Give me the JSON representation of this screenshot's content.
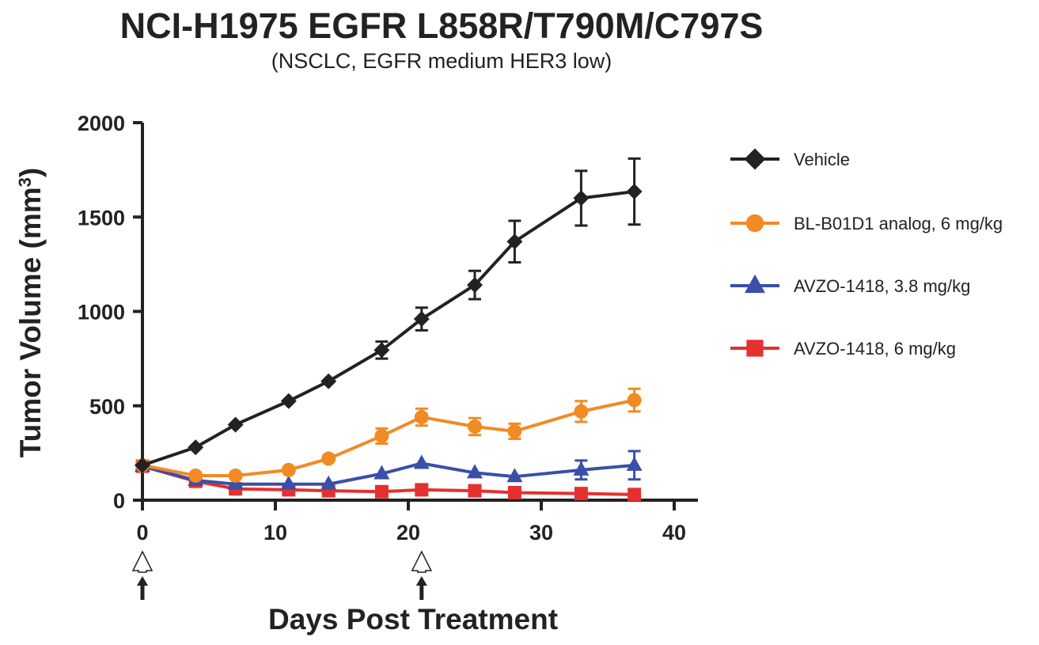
{
  "chart_data": {
    "type": "line",
    "title": "NCI-H1975 EGFR L858R/T790M/C797S",
    "subtitle": "(NSCLC, EGFR medium HER3 low)",
    "xlabel": "Days Post Treatment",
    "ylabel_main": "Tumor Volume (mm",
    "ylabel_sup": "3",
    "ylabel_close": ")",
    "xlim": [
      0,
      40
    ],
    "ylim": [
      0,
      2000
    ],
    "x_ticks": [
      0,
      10,
      20,
      30,
      40
    ],
    "y_ticks": [
      0,
      500,
      1000,
      1500,
      2000
    ],
    "grid": false,
    "legend_position": "right",
    "dosing_arrows_days": [
      0,
      21
    ],
    "series": [
      {
        "name": "Vehicle",
        "color": "#222222",
        "marker": "diamond",
        "x": [
          0,
          4,
          7,
          11,
          14,
          18,
          21,
          25,
          28,
          33,
          37
        ],
        "y": [
          185,
          280,
          400,
          525,
          630,
          795,
          960,
          1140,
          1370,
          1600,
          1635
        ],
        "err": [
          0,
          0,
          0,
          0,
          0,
          45,
          60,
          75,
          110,
          145,
          175
        ]
      },
      {
        "name": "BL-B01D1 analog, 6 mg/kg",
        "color": "#f28a24",
        "marker": "circle",
        "x": [
          0,
          4,
          7,
          11,
          14,
          18,
          21,
          25,
          28,
          33,
          37
        ],
        "y": [
          185,
          130,
          130,
          160,
          220,
          340,
          440,
          390,
          365,
          470,
          530
        ],
        "err": [
          0,
          0,
          0,
          0,
          0,
          40,
          45,
          45,
          40,
          55,
          60
        ]
      },
      {
        "name": "AVZO-1418, 3.8 mg/kg",
        "color": "#3a4fa8",
        "marker": "triangle",
        "x": [
          0,
          4,
          7,
          11,
          14,
          18,
          21,
          25,
          28,
          33,
          37
        ],
        "y": [
          180,
          105,
          85,
          85,
          85,
          140,
          195,
          145,
          125,
          160,
          185
        ],
        "err": [
          0,
          0,
          0,
          0,
          0,
          0,
          0,
          0,
          0,
          50,
          75
        ]
      },
      {
        "name": "AVZO-1418, 6 mg/kg",
        "color": "#e53030",
        "marker": "square",
        "x": [
          0,
          4,
          7,
          11,
          14,
          18,
          21,
          25,
          28,
          33,
          37
        ],
        "y": [
          180,
          100,
          60,
          55,
          50,
          45,
          55,
          50,
          40,
          35,
          30
        ],
        "err": [
          0,
          0,
          0,
          0,
          0,
          0,
          0,
          0,
          0,
          0,
          0
        ]
      }
    ]
  }
}
